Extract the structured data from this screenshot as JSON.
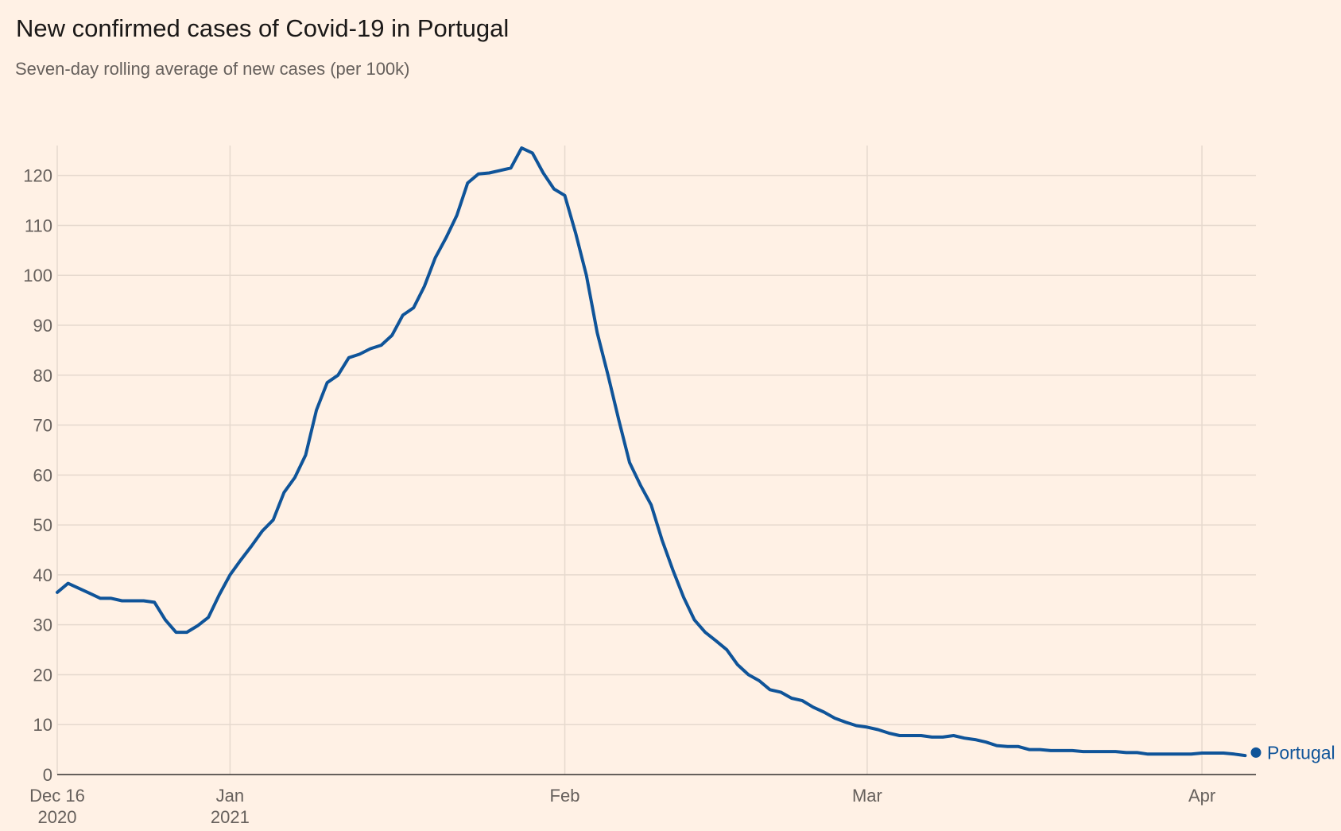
{
  "chart_data": {
    "type": "line",
    "title": "New confirmed cases of Covid-19 in Portugal",
    "subtitle": "Seven-day rolling average of new cases (per 100k)",
    "xlabel": "",
    "ylabel": "",
    "ylim": [
      0,
      126
    ],
    "yticks": [
      0,
      10,
      20,
      30,
      40,
      50,
      60,
      70,
      80,
      90,
      100,
      110,
      120
    ],
    "x_start": "2020-12-16",
    "x_range_days": [
      0,
      111
    ],
    "xticks": [
      {
        "day": 0,
        "label": "Dec 16",
        "sublabel": "2020"
      },
      {
        "day": 16,
        "label": "Jan",
        "sublabel": "2021"
      },
      {
        "day": 47,
        "label": "Feb",
        "sublabel": ""
      },
      {
        "day": 75,
        "label": "Mar",
        "sublabel": ""
      },
      {
        "day": 106,
        "label": "Apr",
        "sublabel": ""
      }
    ],
    "grid": true,
    "series": [
      {
        "name": "Portugal",
        "color": "#0f5499",
        "end_label": "Portugal",
        "points": [
          [
            0,
            36.5
          ],
          [
            1,
            38.3
          ],
          [
            2,
            37.3
          ],
          [
            3,
            36.3
          ],
          [
            4,
            35.3
          ],
          [
            5,
            35.3
          ],
          [
            6,
            34.8
          ],
          [
            7,
            34.8
          ],
          [
            8,
            34.8
          ],
          [
            9,
            34.5
          ],
          [
            10,
            31.0
          ],
          [
            11,
            28.5
          ],
          [
            12,
            28.5
          ],
          [
            13,
            29.8
          ],
          [
            14,
            31.5
          ],
          [
            15,
            36.0
          ],
          [
            16,
            40.0
          ],
          [
            17,
            43.0
          ],
          [
            18,
            45.8
          ],
          [
            19,
            48.8
          ],
          [
            20,
            51.0
          ],
          [
            21,
            56.5
          ],
          [
            22,
            59.5
          ],
          [
            23,
            64.0
          ],
          [
            24,
            73.0
          ],
          [
            25,
            78.5
          ],
          [
            26,
            80.0
          ],
          [
            27,
            83.5
          ],
          [
            28,
            84.2
          ],
          [
            29,
            85.3
          ],
          [
            30,
            86.0
          ],
          [
            31,
            88.0
          ],
          [
            32,
            92.0
          ],
          [
            33,
            93.5
          ],
          [
            34,
            97.8
          ],
          [
            35,
            103.5
          ],
          [
            36,
            107.5
          ],
          [
            37,
            112.0
          ],
          [
            38,
            118.5
          ],
          [
            39,
            120.3
          ],
          [
            40,
            120.5
          ],
          [
            41,
            121.0
          ],
          [
            42,
            121.5
          ],
          [
            43,
            125.5
          ],
          [
            44,
            124.5
          ],
          [
            45,
            120.5
          ],
          [
            46,
            117.3
          ],
          [
            47,
            116.0
          ],
          [
            48,
            108.5
          ],
          [
            49,
            100.0
          ],
          [
            50,
            88.5
          ],
          [
            51,
            80.0
          ],
          [
            52,
            71.0
          ],
          [
            53,
            62.5
          ],
          [
            54,
            58.0
          ],
          [
            55,
            54.0
          ],
          [
            56,
            47.0
          ],
          [
            57,
            41.0
          ],
          [
            58,
            35.5
          ],
          [
            59,
            31.0
          ],
          [
            60,
            28.5
          ],
          [
            61,
            26.8
          ],
          [
            62,
            25.0
          ],
          [
            63,
            22.0
          ],
          [
            64,
            20.0
          ],
          [
            65,
            18.8
          ],
          [
            66,
            17.0
          ],
          [
            67,
            16.5
          ],
          [
            68,
            15.3
          ],
          [
            69,
            14.8
          ],
          [
            70,
            13.5
          ],
          [
            71,
            12.5
          ],
          [
            72,
            11.3
          ],
          [
            73,
            10.5
          ],
          [
            74,
            9.8
          ],
          [
            75,
            9.5
          ],
          [
            76,
            9.0
          ],
          [
            77,
            8.3
          ],
          [
            78,
            7.8
          ],
          [
            79,
            7.8
          ],
          [
            80,
            7.8
          ],
          [
            81,
            7.5
          ],
          [
            82,
            7.5
          ],
          [
            83,
            7.8
          ],
          [
            84,
            7.3
          ],
          [
            85,
            7.0
          ],
          [
            86,
            6.5
          ],
          [
            87,
            5.8
          ],
          [
            88,
            5.6
          ],
          [
            89,
            5.6
          ],
          [
            90,
            5.0
          ],
          [
            91,
            5.0
          ],
          [
            92,
            4.8
          ],
          [
            93,
            4.8
          ],
          [
            94,
            4.8
          ],
          [
            95,
            4.6
          ],
          [
            96,
            4.6
          ],
          [
            97,
            4.6
          ],
          [
            98,
            4.6
          ],
          [
            99,
            4.4
          ],
          [
            100,
            4.4
          ],
          [
            101,
            4.1
          ],
          [
            102,
            4.1
          ],
          [
            103,
            4.1
          ],
          [
            104,
            4.1
          ],
          [
            105,
            4.1
          ],
          [
            106,
            4.3
          ],
          [
            107,
            4.3
          ],
          [
            108,
            4.3
          ],
          [
            109,
            4.1
          ],
          [
            110,
            3.8
          ],
          [
            111,
            4.4
          ]
        ]
      }
    ]
  }
}
